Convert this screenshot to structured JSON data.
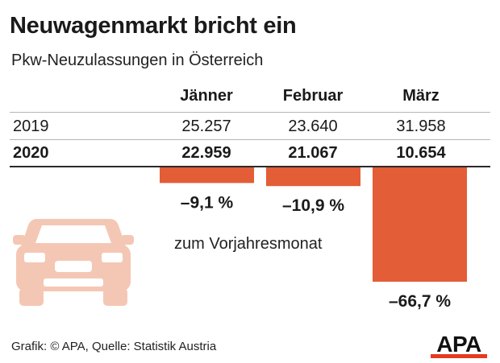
{
  "header": {
    "title": "Neuwagenmarkt bricht ein",
    "subtitle": "Pkw-Neuzulassungen in Österreich"
  },
  "table": {
    "columns": [
      "Jänner",
      "Februar",
      "März"
    ],
    "rows": [
      {
        "label": "2019",
        "values": [
          "25.257",
          "23.640",
          "31.958"
        ]
      },
      {
        "label": "2020",
        "values": [
          "22.959",
          "21.067",
          "10.654"
        ]
      }
    ]
  },
  "chart_data": {
    "type": "bar",
    "categories": [
      "Jänner",
      "Februar",
      "März"
    ],
    "values": [
      -9.1,
      -10.9,
      -66.7
    ],
    "value_labels": [
      "–9,1 %",
      "–10,9 %",
      "–66,7 %"
    ],
    "annotation": "zum Vorjahresmonat",
    "ylim": [
      -70,
      0
    ],
    "bar_color": "#e35d36"
  },
  "footer": {
    "source": "Grafik: © APA, Quelle: Statistik Austria"
  },
  "logo": {
    "text": "APA",
    "color": "#111111",
    "accent": "#e63a1f"
  },
  "car_icon": {
    "name": "car-icon",
    "color": "#f4c7b4"
  }
}
